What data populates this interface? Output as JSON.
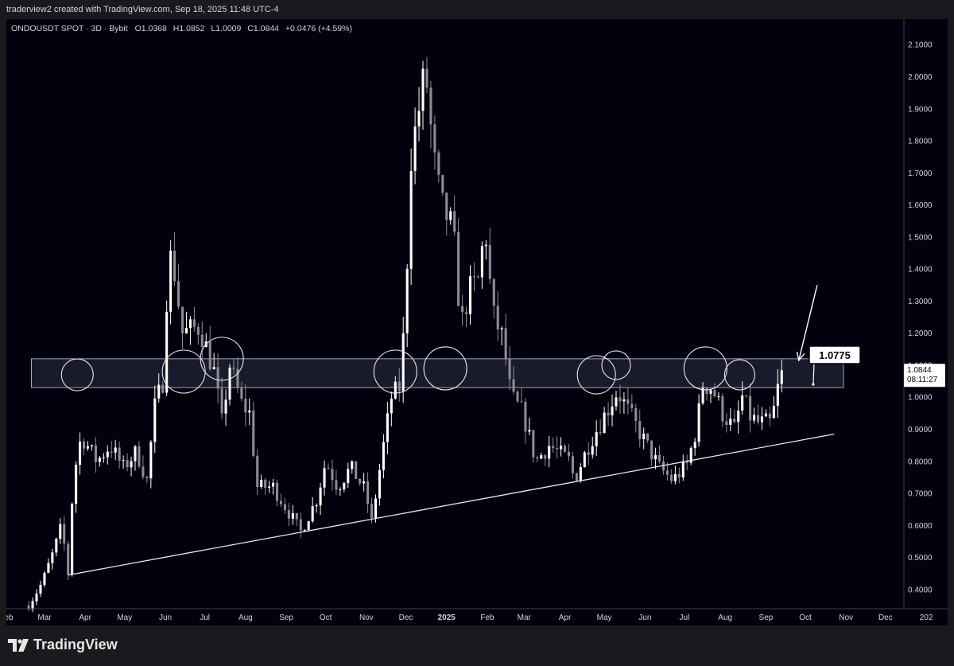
{
  "header": {
    "credit": "traderview2 created with TradingView.com, Sep 18, 2025 11:48 UTC-4"
  },
  "legend": {
    "symbol": "ONDOUSDT SPOT · 3D · Bybit",
    "open": "O1.0368",
    "high": "H1.0852",
    "low": "L1.0009",
    "close": "C1.0844",
    "change": "+0.0476 (+4.59%)"
  },
  "price_tag": {
    "price": "1.0844",
    "countdown": "08:11:27"
  },
  "annotation": {
    "level_label": "1.0775"
  },
  "footer": {
    "brand": "TradingView"
  },
  "colors": {
    "background": "#02020f",
    "candle": "#ffffff",
    "candle_down": "#8c8c96",
    "zone_fill": "#2e3145",
    "text": "#d1d4dc"
  },
  "chart_data": {
    "type": "candlestick",
    "title": "",
    "ylim": [
      0.34,
      2.18
    ],
    "y_ticks": [
      "2.1000",
      "2.0000",
      "1.9000",
      "1.8000",
      "1.7000",
      "1.6000",
      "1.5000",
      "1.4000",
      "1.3000",
      "1.2000",
      "1.1000",
      "1.0000",
      "0.9000",
      "0.8000",
      "0.7000",
      "0.6000",
      "0.5000",
      "0.4000"
    ],
    "x_range": [
      "2024-02-01",
      "2025-12-15"
    ],
    "x_ticks": [
      {
        "date": "2024-02-01",
        "label": "Feb"
      },
      {
        "date": "2024-03-01",
        "label": "Mar"
      },
      {
        "date": "2024-04-01",
        "label": "Apr"
      },
      {
        "date": "2024-05-01",
        "label": "May"
      },
      {
        "date": "2024-06-01",
        "label": "Jun"
      },
      {
        "date": "2024-07-01",
        "label": "Jul"
      },
      {
        "date": "2024-08-01",
        "label": "Aug"
      },
      {
        "date": "2024-09-01",
        "label": "Sep"
      },
      {
        "date": "2024-10-01",
        "label": "Oct"
      },
      {
        "date": "2024-11-01",
        "label": "Nov"
      },
      {
        "date": "2024-12-01",
        "label": "Dec"
      },
      {
        "date": "2025-01-01",
        "label": "2025"
      },
      {
        "date": "2025-02-01",
        "label": "Feb"
      },
      {
        "date": "2025-03-01",
        "label": "Mar"
      },
      {
        "date": "2025-04-01",
        "label": "Apr"
      },
      {
        "date": "2025-05-01",
        "label": "May"
      },
      {
        "date": "2025-06-01",
        "label": "Jun"
      },
      {
        "date": "2025-07-01",
        "label": "Jul"
      },
      {
        "date": "2025-08-01",
        "label": "Aug"
      },
      {
        "date": "2025-09-01",
        "label": "Sep"
      },
      {
        "date": "2025-10-01",
        "label": "Oct"
      },
      {
        "date": "2025-11-01",
        "label": "Nov"
      },
      {
        "date": "2025-12-01",
        "label": "Dec"
      },
      {
        "date": "2026-01-01",
        "label": "202"
      }
    ],
    "anchor_closes": [
      {
        "date": "2024-02-18",
        "close": 0.35
      },
      {
        "date": "2024-02-28",
        "close": 0.42
      },
      {
        "date": "2024-03-08",
        "close": 0.52
      },
      {
        "date": "2024-03-14",
        "close": 0.6
      },
      {
        "date": "2024-03-19",
        "close": 0.45
      },
      {
        "date": "2024-03-23",
        "close": 0.75
      },
      {
        "date": "2024-03-29",
        "close": 0.88
      },
      {
        "date": "2024-04-10",
        "close": 0.8
      },
      {
        "date": "2024-04-20",
        "close": 0.85
      },
      {
        "date": "2024-04-30",
        "close": 0.78
      },
      {
        "date": "2024-05-10",
        "close": 0.83
      },
      {
        "date": "2024-05-18",
        "close": 0.74
      },
      {
        "date": "2024-05-24",
        "close": 0.97
      },
      {
        "date": "2024-05-30",
        "close": 1.05
      },
      {
        "date": "2024-06-03",
        "close": 1.4
      },
      {
        "date": "2024-06-06",
        "close": 1.45
      },
      {
        "date": "2024-06-14",
        "close": 1.2
      },
      {
        "date": "2024-06-27",
        "close": 1.22
      },
      {
        "date": "2024-07-08",
        "close": 1.08
      },
      {
        "date": "2024-07-14",
        "close": 0.92
      },
      {
        "date": "2024-07-20",
        "close": 1.1
      },
      {
        "date": "2024-07-29",
        "close": 0.98
      },
      {
        "date": "2024-08-04",
        "close": 0.95
      },
      {
        "date": "2024-08-10",
        "close": 0.72
      },
      {
        "date": "2024-08-22",
        "close": 0.72
      },
      {
        "date": "2024-09-03",
        "close": 0.64
      },
      {
        "date": "2024-09-12",
        "close": 0.58
      },
      {
        "date": "2024-09-24",
        "close": 0.68
      },
      {
        "date": "2024-10-01",
        "close": 0.8
      },
      {
        "date": "2024-10-10",
        "close": 0.72
      },
      {
        "date": "2024-10-20",
        "close": 0.78
      },
      {
        "date": "2024-10-31",
        "close": 0.71
      },
      {
        "date": "2024-11-05",
        "close": 0.61
      },
      {
        "date": "2024-11-12",
        "close": 0.8
      },
      {
        "date": "2024-11-20",
        "close": 1.0
      },
      {
        "date": "2024-11-26",
        "close": 1.03
      },
      {
        "date": "2024-12-01",
        "close": 1.28
      },
      {
        "date": "2024-12-04",
        "close": 1.73
      },
      {
        "date": "2024-12-13",
        "close": 1.95
      },
      {
        "date": "2024-12-16",
        "close": 2.02
      },
      {
        "date": "2024-12-22",
        "close": 1.75
      },
      {
        "date": "2024-12-28",
        "close": 1.6
      },
      {
        "date": "2025-01-06",
        "close": 1.52
      },
      {
        "date": "2025-01-12",
        "close": 1.22
      },
      {
        "date": "2025-01-18",
        "close": 1.33
      },
      {
        "date": "2025-01-26",
        "close": 1.37
      },
      {
        "date": "2025-01-30",
        "close": 1.55
      },
      {
        "date": "2025-02-05",
        "close": 1.26
      },
      {
        "date": "2025-02-13",
        "close": 1.18
      },
      {
        "date": "2025-02-19",
        "close": 1.0
      },
      {
        "date": "2025-02-28",
        "close": 0.95
      },
      {
        "date": "2025-03-10",
        "close": 0.8
      },
      {
        "date": "2025-03-20",
        "close": 0.85
      },
      {
        "date": "2025-04-05",
        "close": 0.8
      },
      {
        "date": "2025-04-08",
        "close": 0.74
      },
      {
        "date": "2025-04-20",
        "close": 0.86
      },
      {
        "date": "2025-05-02",
        "close": 0.95
      },
      {
        "date": "2025-05-11",
        "close": 1.02
      },
      {
        "date": "2025-05-20",
        "close": 0.95
      },
      {
        "date": "2025-06-01",
        "close": 0.86
      },
      {
        "date": "2025-06-12",
        "close": 0.78
      },
      {
        "date": "2025-06-22",
        "close": 0.74
      },
      {
        "date": "2025-07-03",
        "close": 0.79
      },
      {
        "date": "2025-07-10",
        "close": 0.9
      },
      {
        "date": "2025-07-15",
        "close": 1.04
      },
      {
        "date": "2025-07-22",
        "close": 1.03
      },
      {
        "date": "2025-07-30",
        "close": 0.95
      },
      {
        "date": "2025-08-08",
        "close": 0.9
      },
      {
        "date": "2025-08-14",
        "close": 1.0
      },
      {
        "date": "2025-08-20",
        "close": 0.94
      },
      {
        "date": "2025-08-26",
        "close": 0.92
      },
      {
        "date": "2025-09-05",
        "close": 0.92
      },
      {
        "date": "2025-09-09",
        "close": 1.0
      },
      {
        "date": "2025-09-12",
        "close": 1.08
      },
      {
        "date": "2025-09-15",
        "close": 1.085
      }
    ],
    "last_close": 1.0844,
    "zone": {
      "from_date": "2024-02-20",
      "to_date": "2025-10-30",
      "low": 1.03,
      "high": 1.12
    },
    "support_line": {
      "from": {
        "date": "2024-03-19",
        "price": 0.445
      },
      "to": {
        "date": "2025-10-23",
        "price": 0.885
      }
    },
    "circles": [
      {
        "date": "2024-03-26",
        "price": 1.07
      },
      {
        "date": "2024-06-15",
        "price": 1.08
      },
      {
        "date": "2024-07-14",
        "price": 1.12
      },
      {
        "date": "2024-11-23",
        "price": 1.08
      },
      {
        "date": "2024-12-31",
        "price": 1.09
      },
      {
        "date": "2025-04-25",
        "price": 1.07
      },
      {
        "date": "2025-05-10",
        "price": 1.1
      },
      {
        "date": "2025-07-17",
        "price": 1.09
      },
      {
        "date": "2025-08-12",
        "price": 1.07
      }
    ],
    "arrow": {
      "from": {
        "date": "2025-10-10",
        "price": 1.35
      },
      "to": {
        "date": "2025-09-26",
        "price": 1.115
      }
    }
  }
}
